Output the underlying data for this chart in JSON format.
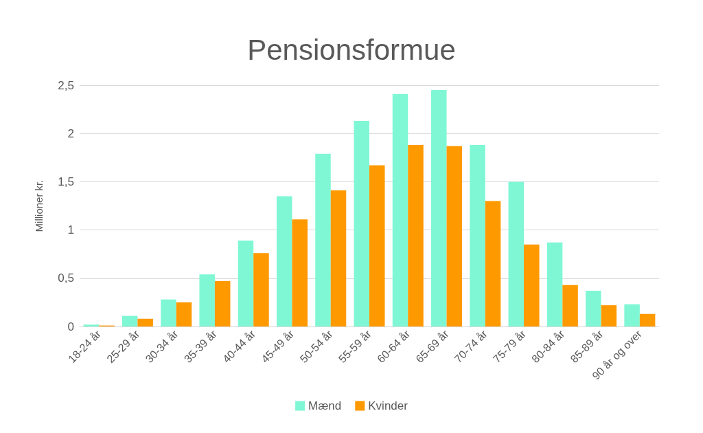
{
  "chart_data": {
    "type": "bar",
    "title": "Pensionsformue",
    "ylabel": "Millioner kr.",
    "categories": [
      "18-24 år",
      "25-29 år",
      "30-34 år",
      "35-39 år",
      "40-44 år",
      "45-49 år",
      "50-54 år",
      "55-59 år",
      "60-64 år",
      "65-69 år",
      "70-74 år",
      "75-79 år",
      "80-84 år",
      "85-89 år",
      "90 år og over"
    ],
    "series": [
      {
        "name": "Mænd",
        "color": "#7ff7d4",
        "values": [
          0.02,
          0.11,
          0.28,
          0.54,
          0.89,
          1.35,
          1.79,
          2.13,
          2.41,
          2.45,
          1.88,
          1.5,
          0.87,
          0.37,
          0.23
        ]
      },
      {
        "name": "Kvinder",
        "color": "#ff9900",
        "values": [
          0.01,
          0.08,
          0.25,
          0.47,
          0.76,
          1.11,
          1.41,
          1.67,
          1.88,
          1.87,
          1.3,
          0.85,
          0.43,
          0.22,
          0.13
        ]
      }
    ],
    "ylim": [
      0,
      2.5
    ],
    "yticks": [
      0,
      {
        "value": 0.5,
        "label": "0,5"
      },
      1,
      {
        "value": 1.5,
        "label": "1,5"
      },
      2,
      {
        "value": 2.5,
        "label": "2,5"
      }
    ],
    "grid": "y",
    "legend": "bottom"
  }
}
